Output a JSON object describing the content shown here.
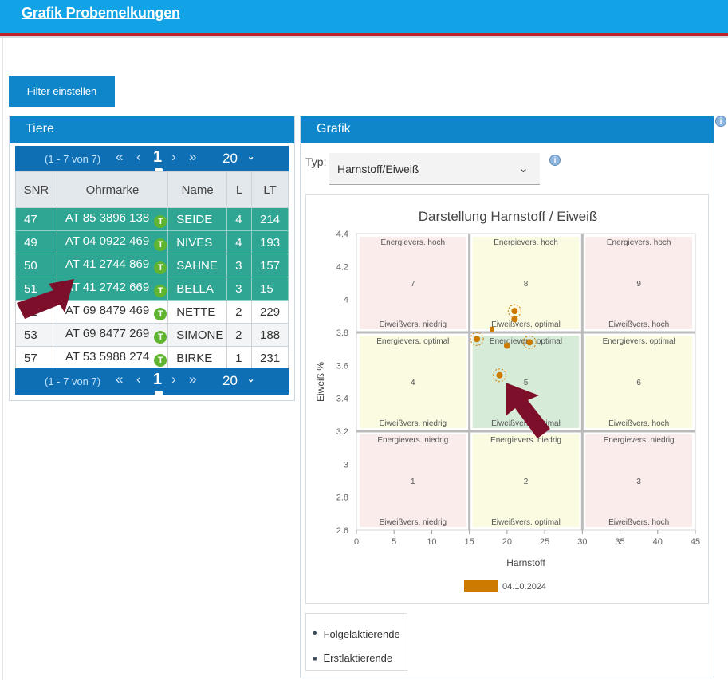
{
  "header": {
    "title": "Grafik Probemelkungen"
  },
  "toolbar": {
    "filter_label": "Filter einstellen"
  },
  "tiere": {
    "title": "Tiere",
    "pager": {
      "info": "(1 - 7 von 7)",
      "first": "«",
      "prev": "‹",
      "current": "1",
      "next": "›",
      "last": "»",
      "page_size": "20"
    },
    "columns": [
      "SNR",
      "Ohrmarke",
      "Name",
      "L",
      "LT"
    ],
    "rows": [
      {
        "snr": "47",
        "ohrmarke": "AT 85 3896 138",
        "name": "SEIDE",
        "l": "4",
        "lt": "214",
        "selected": true
      },
      {
        "snr": "49",
        "ohrmarke": "AT 04 0922 469",
        "name": "NIVES",
        "l": "4",
        "lt": "193",
        "selected": true
      },
      {
        "snr": "50",
        "ohrmarke": "AT 41 2744 869",
        "name": "SAHNE",
        "l": "3",
        "lt": "157",
        "selected": true
      },
      {
        "snr": "51",
        "ohrmarke": "AT 41 2742 669",
        "name": "BELLA",
        "l": "3",
        "lt": "15",
        "selected": true
      },
      {
        "snr": "52",
        "ohrmarke": "AT 69 8479 469",
        "name": "NETTE",
        "l": "2",
        "lt": "229",
        "selected": false
      },
      {
        "snr": "53",
        "ohrmarke": "AT 69 8477 269",
        "name": "SIMONE",
        "l": "2",
        "lt": "188",
        "selected": false
      },
      {
        "snr": "57",
        "ohrmarke": "AT 53 5988 274",
        "name": "BIRKE",
        "l": "1",
        "lt": "231",
        "selected": false
      }
    ],
    "badge": "T"
  },
  "grafik": {
    "title": "Grafik",
    "typ_label": "Typ:",
    "typ_value": "Harnstoff/Eiweiß",
    "info_icon": "i"
  },
  "colors": {
    "header": "#11a3e6",
    "panel_header": "#0f86c9",
    "selected_row": "#2ea693",
    "marker": "#cc7a00",
    "badge": "#5fb52f",
    "arrow": "#7d0f2b"
  },
  "chart_data": {
    "type": "scatter",
    "title": "Darstellung Harnstoff / Eiweiß",
    "xlabel": "Harnstoff",
    "ylabel": "Eiweiß %",
    "xlim": [
      0,
      45
    ],
    "ylim": [
      2.6,
      4.4
    ],
    "xticks": [
      0,
      5,
      10,
      15,
      20,
      25,
      30,
      35,
      40,
      45
    ],
    "yticks": [
      2.6,
      2.8,
      3.0,
      3.2,
      3.4,
      3.6,
      3.8,
      4.0,
      4.2,
      4.4
    ],
    "grid": true,
    "zones": [
      {
        "id": "1",
        "x": [
          0,
          15
        ],
        "y": [
          2.6,
          3.2
        ],
        "top": "Energievers. niedrig",
        "bottom": "Eiweißvers. niedrig",
        "color": "#fbecec"
      },
      {
        "id": "2",
        "x": [
          15,
          30
        ],
        "y": [
          2.6,
          3.2
        ],
        "top": "Energievers. niedrig",
        "bottom": "Eiweißvers. optimal",
        "color": "#fbfbe2"
      },
      {
        "id": "3",
        "x": [
          30,
          45
        ],
        "y": [
          2.6,
          3.2
        ],
        "top": "Energievers. niedrig",
        "bottom": "Eiweißvers. hoch",
        "color": "#fbecec"
      },
      {
        "id": "4",
        "x": [
          0,
          15
        ],
        "y": [
          3.2,
          3.8
        ],
        "top": "Energievers. optimal",
        "bottom": "Eiweißvers. niedrig",
        "color": "#fbfbe2"
      },
      {
        "id": "5",
        "x": [
          15,
          30
        ],
        "y": [
          3.2,
          3.8
        ],
        "top": "Energievers. optimal",
        "bottom": "Eiweißvers. optimal",
        "color": "#d7ecd8"
      },
      {
        "id": "6",
        "x": [
          30,
          45
        ],
        "y": [
          3.2,
          3.8
        ],
        "top": "Energievers. optimal",
        "bottom": "Eiweißvers. hoch",
        "color": "#fbfbe2"
      },
      {
        "id": "7",
        "x": [
          0,
          15
        ],
        "y": [
          3.8,
          4.4
        ],
        "top": "Energievers. hoch",
        "bottom": "Eiweißvers. niedrig",
        "color": "#fbecec"
      },
      {
        "id": "8",
        "x": [
          15,
          30
        ],
        "y": [
          3.8,
          4.4
        ],
        "top": "Energievers. hoch",
        "bottom": "Eiweißvers. optimal",
        "color": "#fbfbe2"
      },
      {
        "id": "9",
        "x": [
          30,
          45
        ],
        "y": [
          3.8,
          4.4
        ],
        "top": "Energievers. hoch",
        "bottom": "Eiweißvers. hoch",
        "color": "#fbecec"
      }
    ],
    "series": [
      {
        "name": "04.10.2024",
        "color": "#cc7a00",
        "points": [
          {
            "x": 21,
            "y": 3.93,
            "shape": "circle",
            "ring": true
          },
          {
            "x": 21,
            "y": 3.88,
            "shape": "circle",
            "ring": false
          },
          {
            "x": 18,
            "y": 3.82,
            "shape": "square",
            "ring": false
          },
          {
            "x": 16,
            "y": 3.76,
            "shape": "circle",
            "ring": true
          },
          {
            "x": 20,
            "y": 3.72,
            "shape": "circle",
            "ring": false
          },
          {
            "x": 23,
            "y": 3.74,
            "shape": "circle",
            "ring": true
          },
          {
            "x": 19,
            "y": 3.54,
            "shape": "circle",
            "ring": true
          }
        ]
      }
    ],
    "legend": {
      "series": "04.10.2024",
      "placement": "bottom"
    },
    "shape_legend": [
      {
        "symbol": "•",
        "label": "Folgelaktierende"
      },
      {
        "symbol": "■",
        "label": "Erstlaktierende"
      }
    ]
  }
}
